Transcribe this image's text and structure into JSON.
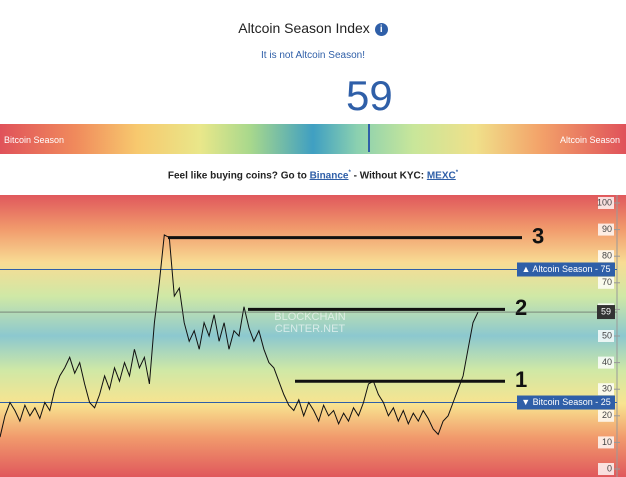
{
  "title": "Altcoin Season Index",
  "subtitle": "It is not Altcoin Season!",
  "gauge": {
    "value": 59,
    "lim": [
      0,
      100
    ],
    "left_label": "Bitcoin Season",
    "right_label": "Altcoin Season"
  },
  "promo": {
    "prefix": "Feel like buying coins? Go to",
    "link1": "Binance",
    "asterisk": "*",
    "mid": "- Without KYC:",
    "link2": "MEXC"
  },
  "chart_data": {
    "type": "line",
    "watermark": [
      "BLOCKCHAIN",
      "CENTER.NET"
    ],
    "series": [
      {
        "color": "#111111",
        "values": [
          12,
          20,
          25,
          22,
          18,
          24,
          20,
          23,
          19,
          25,
          22,
          30,
          35,
          38,
          42,
          36,
          40,
          32,
          25,
          23,
          28,
          35,
          30,
          38,
          33,
          40,
          35,
          45,
          38,
          42,
          32,
          55,
          70,
          88,
          87,
          65,
          68,
          55,
          48,
          52,
          45,
          55,
          50,
          58,
          48,
          55,
          45,
          52,
          50,
          61,
          53,
          48,
          52,
          45,
          40,
          38,
          33,
          28,
          24,
          22,
          26,
          20,
          25,
          22,
          18,
          24,
          20,
          22,
          17,
          21,
          18,
          23,
          20,
          25,
          32,
          33,
          28,
          25,
          20,
          23,
          18,
          22,
          17,
          21,
          18,
          22,
          19,
          15,
          13,
          18,
          20,
          25,
          30,
          35,
          45,
          55,
          59
        ]
      }
    ],
    "ylim": [
      -3,
      103
    ],
    "yticks": [
      0,
      10,
      20,
      30,
      40,
      50,
      60,
      70,
      80,
      90,
      100
    ],
    "reference_lines": [
      {
        "value": 75,
        "label": "▲ Altcoin Season - 75"
      },
      {
        "value": 25,
        "label": "▼ Bitcoin Season - 25"
      }
    ],
    "annotations": [
      {
        "label": "3",
        "value": 87
      },
      {
        "label": "2",
        "value": 60
      },
      {
        "label": "1",
        "value": 33
      }
    ]
  }
}
